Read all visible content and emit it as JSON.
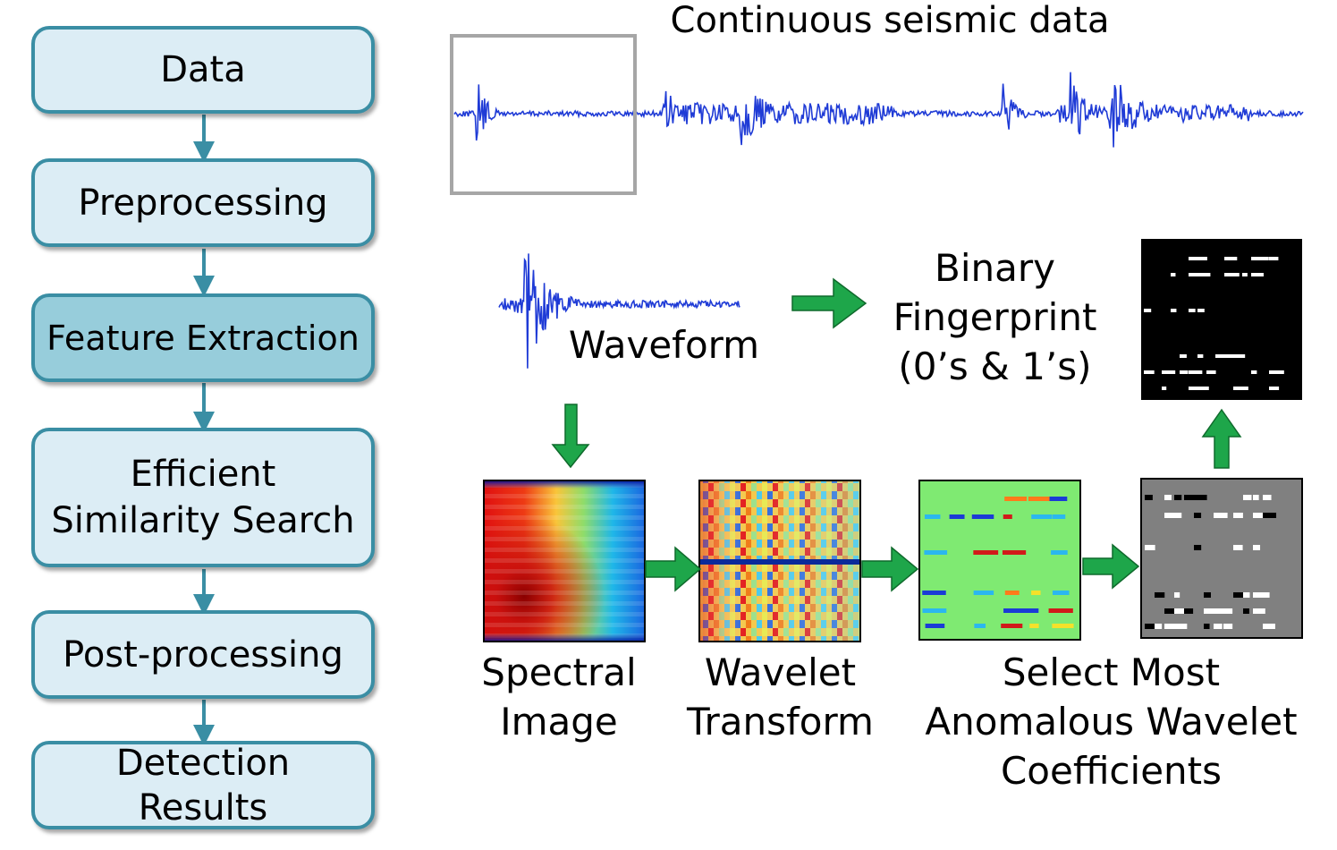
{
  "pipeline": {
    "steps": [
      {
        "label": "Data"
      },
      {
        "label": "Preprocessing"
      },
      {
        "label": "Feature Extraction"
      },
      {
        "label": "Efficient Similarity Search"
      },
      {
        "label": "Post-processing"
      },
      {
        "label": "Detection Results"
      }
    ],
    "active_step": "Feature Extraction"
  },
  "feature_extraction": {
    "title": "Continuous seismic data",
    "waveform_label": "Waveform",
    "fingerprint_label": {
      "line1": "Binary",
      "line2": "Fingerprint",
      "line3": "(0’s & 1’s)"
    },
    "spectral_label": {
      "line1": "Spectral",
      "line2": "Image"
    },
    "wavelet_label": {
      "line1": "Wavelet",
      "line2": "Transform"
    },
    "select_label": {
      "line1": "Select Most",
      "line2": "Anomalous Wavelet",
      "line3": "Coefficients"
    }
  },
  "colors": {
    "box_fill": "#dcedf5",
    "box_active_fill": "#97cddb",
    "box_border": "#3a8ea4",
    "arrow_teal": "#3a8ea4",
    "arrow_green": "#1ea64a",
    "waveform_blue": "#1f3bd6",
    "highlight_gray": "#a6a6a6"
  }
}
